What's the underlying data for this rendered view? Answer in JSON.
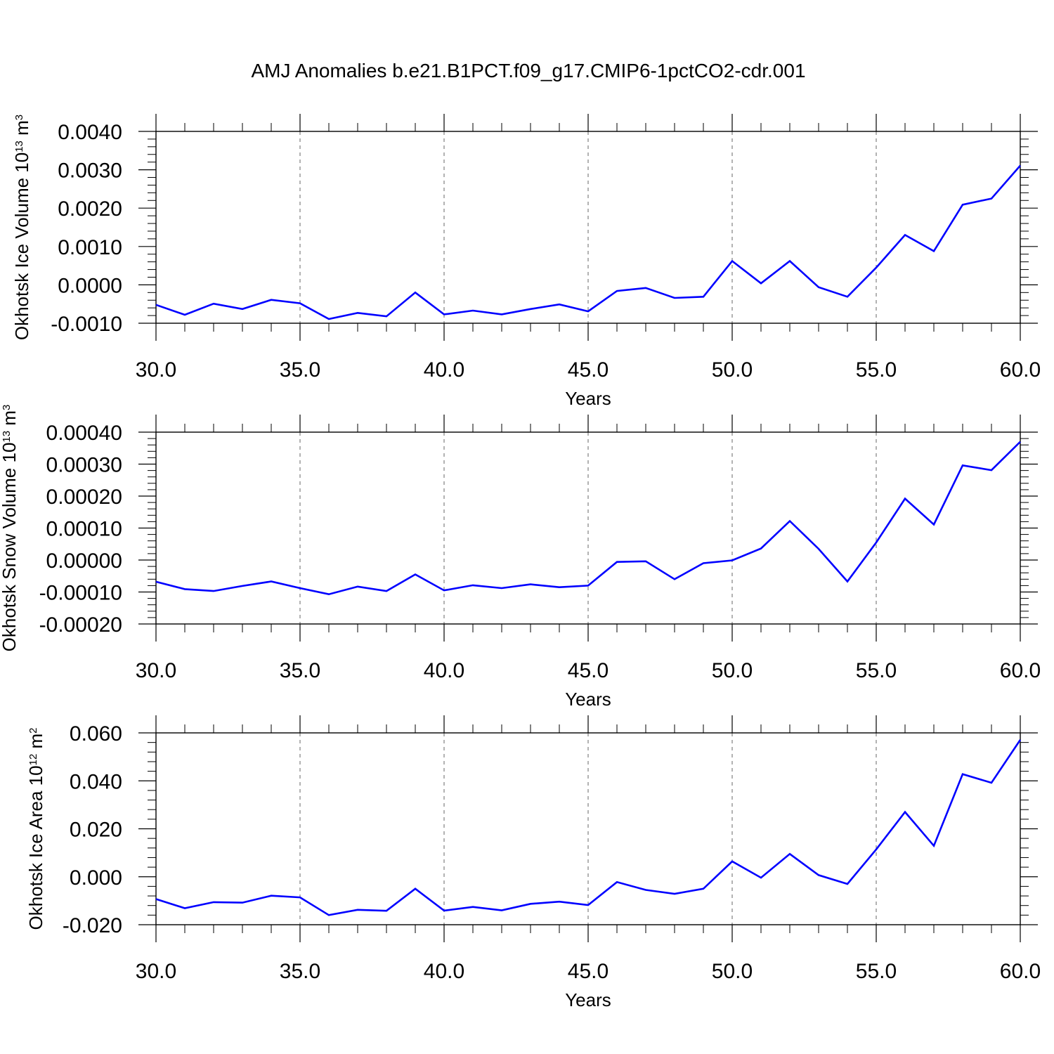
{
  "figure": {
    "title": "AMJ Anomalies b.e21.B1PCT.f09_g17.CMIP6-1pctCO2-cdr.001"
  },
  "colors": {
    "line": "#0000ff",
    "frame": "#000000",
    "grid": "#808080",
    "background": "#ffffff"
  },
  "chart_data": [
    {
      "type": "line",
      "xlabel": "Years",
      "ylabel_prefix": "Okhotsk Ice Volume 10",
      "ylabel_exponent": "13",
      "ylabel_unit": " m",
      "ylabel_unit_exponent": "3",
      "xlim": [
        30,
        60
      ],
      "ylim": [
        -0.001,
        0.004
      ],
      "xticks": [
        30,
        35,
        40,
        45,
        50,
        55,
        60
      ],
      "xtick_labels": [
        "30.0",
        "35.0",
        "40.0",
        "45.0",
        "50.0",
        "55.0",
        "60.0"
      ],
      "yticks": [
        -0.001,
        0.0,
        0.001,
        0.002,
        0.003,
        0.004
      ],
      "ytick_labels": [
        "-0.0010",
        "0.0000",
        "0.0010",
        "0.0020",
        "0.0030",
        "0.0040"
      ],
      "grid": "vertical dashed",
      "series": [
        {
          "x": [
            30,
            31,
            32,
            33,
            34,
            35,
            36,
            37,
            38,
            39,
            40,
            41,
            42,
            43,
            44,
            45,
            46,
            47,
            48,
            49,
            50,
            51,
            52,
            53,
            54,
            55,
            56,
            57,
            58,
            59,
            60
          ],
          "values": [
            -0.00052,
            -0.00078,
            -0.00049,
            -0.00063,
            -0.00039,
            -0.00048,
            -0.00089,
            -0.00073,
            -0.00082,
            -0.0002,
            -0.00077,
            -0.00067,
            -0.00077,
            -0.00063,
            -0.00051,
            -0.00069,
            -0.00016,
            -8e-05,
            -0.00034,
            -0.00031,
            0.00062,
            4e-05,
            0.00062,
            -6e-05,
            -0.00031,
            0.00045,
            0.0013,
            0.00088,
            0.00209,
            0.00225,
            0.00311
          ]
        }
      ]
    },
    {
      "type": "line",
      "xlabel": "Years",
      "ylabel_prefix": "Okhotsk Snow Volume 10",
      "ylabel_exponent": "13",
      "ylabel_unit": " m",
      "ylabel_unit_exponent": "3",
      "xlim": [
        30,
        60
      ],
      "ylim": [
        -0.0002,
        0.0004
      ],
      "xticks": [
        30,
        35,
        40,
        45,
        50,
        55,
        60
      ],
      "xtick_labels": [
        "30.0",
        "35.0",
        "40.0",
        "45.0",
        "50.0",
        "55.0",
        "60.0"
      ],
      "yticks": [
        -0.0002,
        -0.0001,
        0.0,
        0.0001,
        0.0002,
        0.0003,
        0.0004
      ],
      "ytick_labels": [
        "-0.00020",
        "-0.00010",
        "0.00000",
        "0.00010",
        "0.00020",
        "0.00030",
        "0.00040"
      ],
      "grid": "vertical dashed",
      "series": [
        {
          "x": [
            30,
            31,
            32,
            33,
            34,
            35,
            36,
            37,
            38,
            39,
            40,
            41,
            42,
            43,
            44,
            45,
            46,
            47,
            48,
            49,
            50,
            51,
            52,
            53,
            54,
            55,
            56,
            57,
            58,
            59,
            60
          ],
          "values": [
            -6.8e-05,
            -9.1e-05,
            -9.7e-05,
            -8.1e-05,
            -6.7e-05,
            -8.8e-05,
            -0.000107,
            -8.3e-05,
            -9.7e-05,
            -4.5e-05,
            -9.5e-05,
            -7.9e-05,
            -8.8e-05,
            -7.6e-05,
            -8.5e-05,
            -8e-05,
            -6e-06,
            -4e-06,
            -6e-05,
            -1e-05,
            -1e-06,
            3.6e-05,
            0.000122,
            3.5e-05,
            -6.7e-05,
            5.5e-05,
            0.000192,
            0.000111,
            0.000296,
            0.000281,
            0.00037
          ]
        }
      ]
    },
    {
      "type": "line",
      "xlabel": "Years",
      "ylabel_prefix": "Okhotsk Ice Area 10",
      "ylabel_exponent": "12",
      "ylabel_unit": " m",
      "ylabel_unit_exponent": "2",
      "xlim": [
        30,
        60
      ],
      "ylim": [
        -0.02,
        0.06
      ],
      "xticks": [
        30,
        35,
        40,
        45,
        50,
        55,
        60
      ],
      "xtick_labels": [
        "30.0",
        "35.0",
        "40.0",
        "45.0",
        "50.0",
        "55.0",
        "60.0"
      ],
      "yticks": [
        -0.02,
        0.0,
        0.02,
        0.04,
        0.06
      ],
      "ytick_labels": [
        "-0.020",
        "0.000",
        "0.020",
        "0.040",
        "0.060"
      ],
      "grid": "vertical dashed",
      "series": [
        {
          "x": [
            30,
            31,
            32,
            33,
            34,
            35,
            36,
            37,
            38,
            39,
            40,
            41,
            42,
            43,
            44,
            45,
            46,
            47,
            48,
            49,
            50,
            51,
            52,
            53,
            54,
            55,
            56,
            57,
            58,
            59,
            60
          ],
          "values": [
            -0.0093,
            -0.0131,
            -0.0106,
            -0.0108,
            -0.0079,
            -0.0086,
            -0.016,
            -0.0138,
            -0.0142,
            -0.005,
            -0.0141,
            -0.0126,
            -0.014,
            -0.0113,
            -0.0104,
            -0.0118,
            -0.0022,
            -0.0055,
            -0.0071,
            -0.005,
            0.0064,
            -0.0004,
            0.0095,
            0.0007,
            -0.003,
            0.0114,
            0.027,
            0.0129,
            0.0428,
            0.0392,
            0.0571
          ]
        }
      ]
    }
  ]
}
